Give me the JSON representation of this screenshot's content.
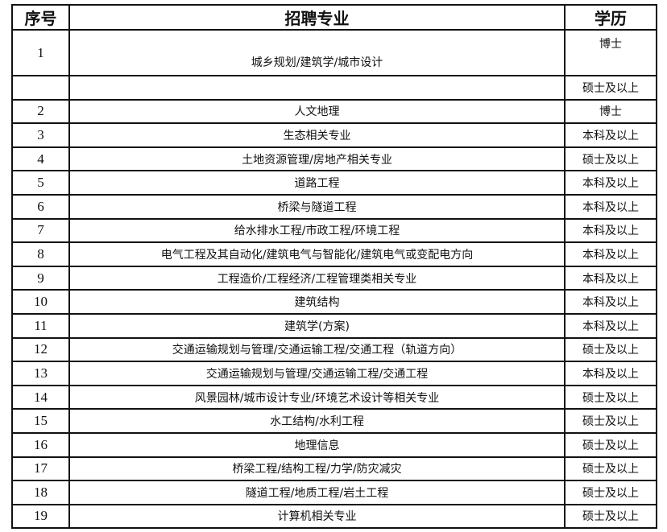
{
  "headers": {
    "index": "序号",
    "major": "招聘专业",
    "education": "学历"
  },
  "rows": [
    {
      "index": "1",
      "major": "城乡规划/建筑学/城市设计",
      "education": "博士"
    },
    {
      "index": "",
      "major": "",
      "education": "硕士及以上"
    },
    {
      "index": "2",
      "major": "人文地理",
      "education": "博士"
    },
    {
      "index": "3",
      "major": "生态相关专业",
      "education": "本科及以上"
    },
    {
      "index": "4",
      "major": "土地资源管理/房地产相关专业",
      "education": "硕士及以上"
    },
    {
      "index": "5",
      "major": "道路工程",
      "education": "本科及以上"
    },
    {
      "index": "6",
      "major": "桥梁与隧道工程",
      "education": "本科及以上"
    },
    {
      "index": "7",
      "major": "给水排水工程/市政工程/环境工程",
      "education": "本科及以上"
    },
    {
      "index": "8",
      "major": "电气工程及其自动化/建筑电气与智能化/建筑电气或变配电方向",
      "education": "本科及以上"
    },
    {
      "index": "9",
      "major": "工程造价/工程经济/工程管理类相关专业",
      "education": "本科及以上"
    },
    {
      "index": "10",
      "major": "建筑结构",
      "education": "本科及以上"
    },
    {
      "index": "11",
      "major": "建筑学(方案)",
      "education": "本科及以上"
    },
    {
      "index": "12",
      "major": "交通运输规划与管理/交通运输工程/交通工程（轨道方向）",
      "education": "硕士及以上"
    },
    {
      "index": "13",
      "major": "交通运输规划与管理/交通运输工程/交通工程",
      "education": "本科及以上"
    },
    {
      "index": "14",
      "major": "风景园林/城市设计专业/环境艺术设计等相关专业",
      "education": "硕士及以上"
    },
    {
      "index": "15",
      "major": "水工结构/水利工程",
      "education": "硕士及以上"
    },
    {
      "index": "16",
      "major": "地理信息",
      "education": "硕士及以上"
    },
    {
      "index": "17",
      "major": "桥梁工程/结构工程/力学/防灾减灾",
      "education": "硕士及以上"
    },
    {
      "index": "18",
      "major": "隧道工程/地质工程/岩土工程",
      "education": "硕士及以上"
    },
    {
      "index": "19",
      "major": "计算机相关专业",
      "education": "硕士及以上"
    }
  ]
}
